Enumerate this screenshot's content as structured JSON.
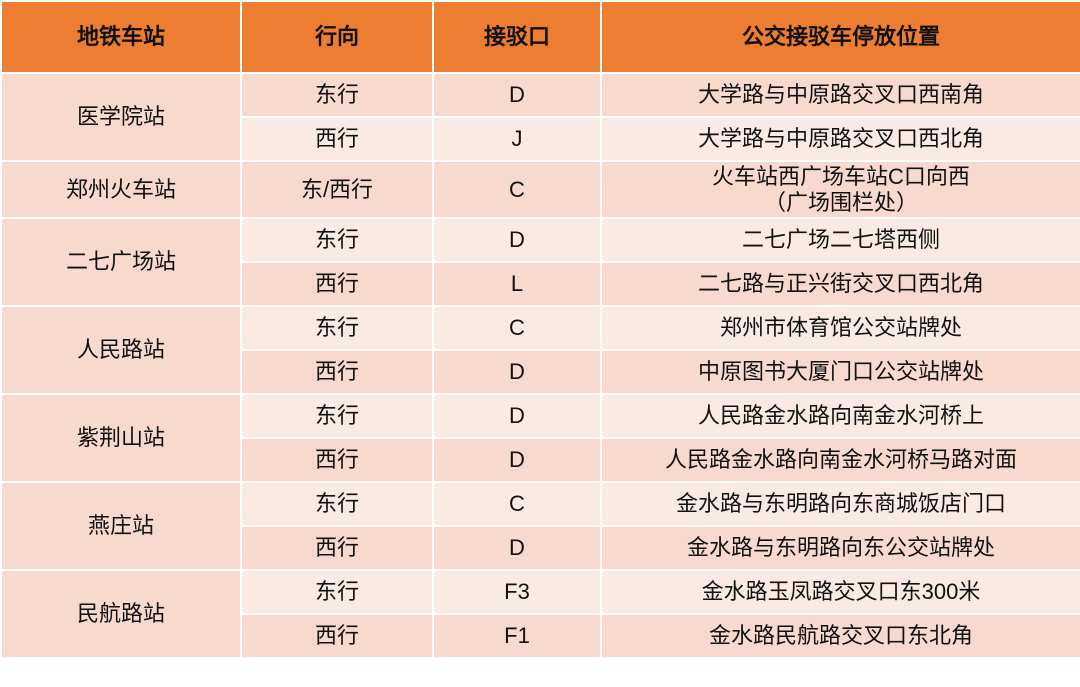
{
  "header": {
    "station": "地铁车站",
    "direction": "行向",
    "exit": "接驳口",
    "location": "公交接驳车停放位置"
  },
  "colors": {
    "header": "#ED7D31",
    "row_dark": "#F8D9CE",
    "row_light": "#FBEAE3"
  },
  "stations": [
    {
      "name": "医学院站",
      "rows": [
        {
          "direction": "东行",
          "exit": "D",
          "location": "大学路与中原路交叉口西南角"
        },
        {
          "direction": "西行",
          "exit": "J",
          "location": "大学路与中原路交叉口西北角"
        }
      ]
    },
    {
      "name": "郑州火车站",
      "rows": [
        {
          "direction": "东/西行",
          "exit": "C",
          "location": "火车站西广场车站C口向西",
          "location2": "（广场围栏处）"
        }
      ]
    },
    {
      "name": "二七广场站",
      "rows": [
        {
          "direction": "东行",
          "exit": "D",
          "location": "二七广场二七塔西侧"
        },
        {
          "direction": "西行",
          "exit": "L",
          "location": "二七路与正兴街交叉口西北角"
        }
      ]
    },
    {
      "name": "人民路站",
      "rows": [
        {
          "direction": "东行",
          "exit": "C",
          "location": "郑州市体育馆公交站牌处"
        },
        {
          "direction": "西行",
          "exit": "D",
          "location": "中原图书大厦门口公交站牌处"
        }
      ]
    },
    {
      "name": "紫荆山站",
      "rows": [
        {
          "direction": "东行",
          "exit": "D",
          "location": "人民路金水路向南金水河桥上"
        },
        {
          "direction": "西行",
          "exit": "D",
          "location": "人民路金水路向南金水河桥马路对面"
        }
      ]
    },
    {
      "name": "燕庄站",
      "rows": [
        {
          "direction": "东行",
          "exit": "C",
          "location": "金水路与东明路向东商城饭店门口"
        },
        {
          "direction": "西行",
          "exit": "D",
          "location": "金水路与东明路向东公交站牌处"
        }
      ]
    },
    {
      "name": "民航路站",
      "rows": [
        {
          "direction": "东行",
          "exit": "F3",
          "location": "金水路玉凤路交叉口东300米"
        },
        {
          "direction": "西行",
          "exit": "F1",
          "location": "金水路民航路交叉口东北角"
        }
      ]
    }
  ]
}
